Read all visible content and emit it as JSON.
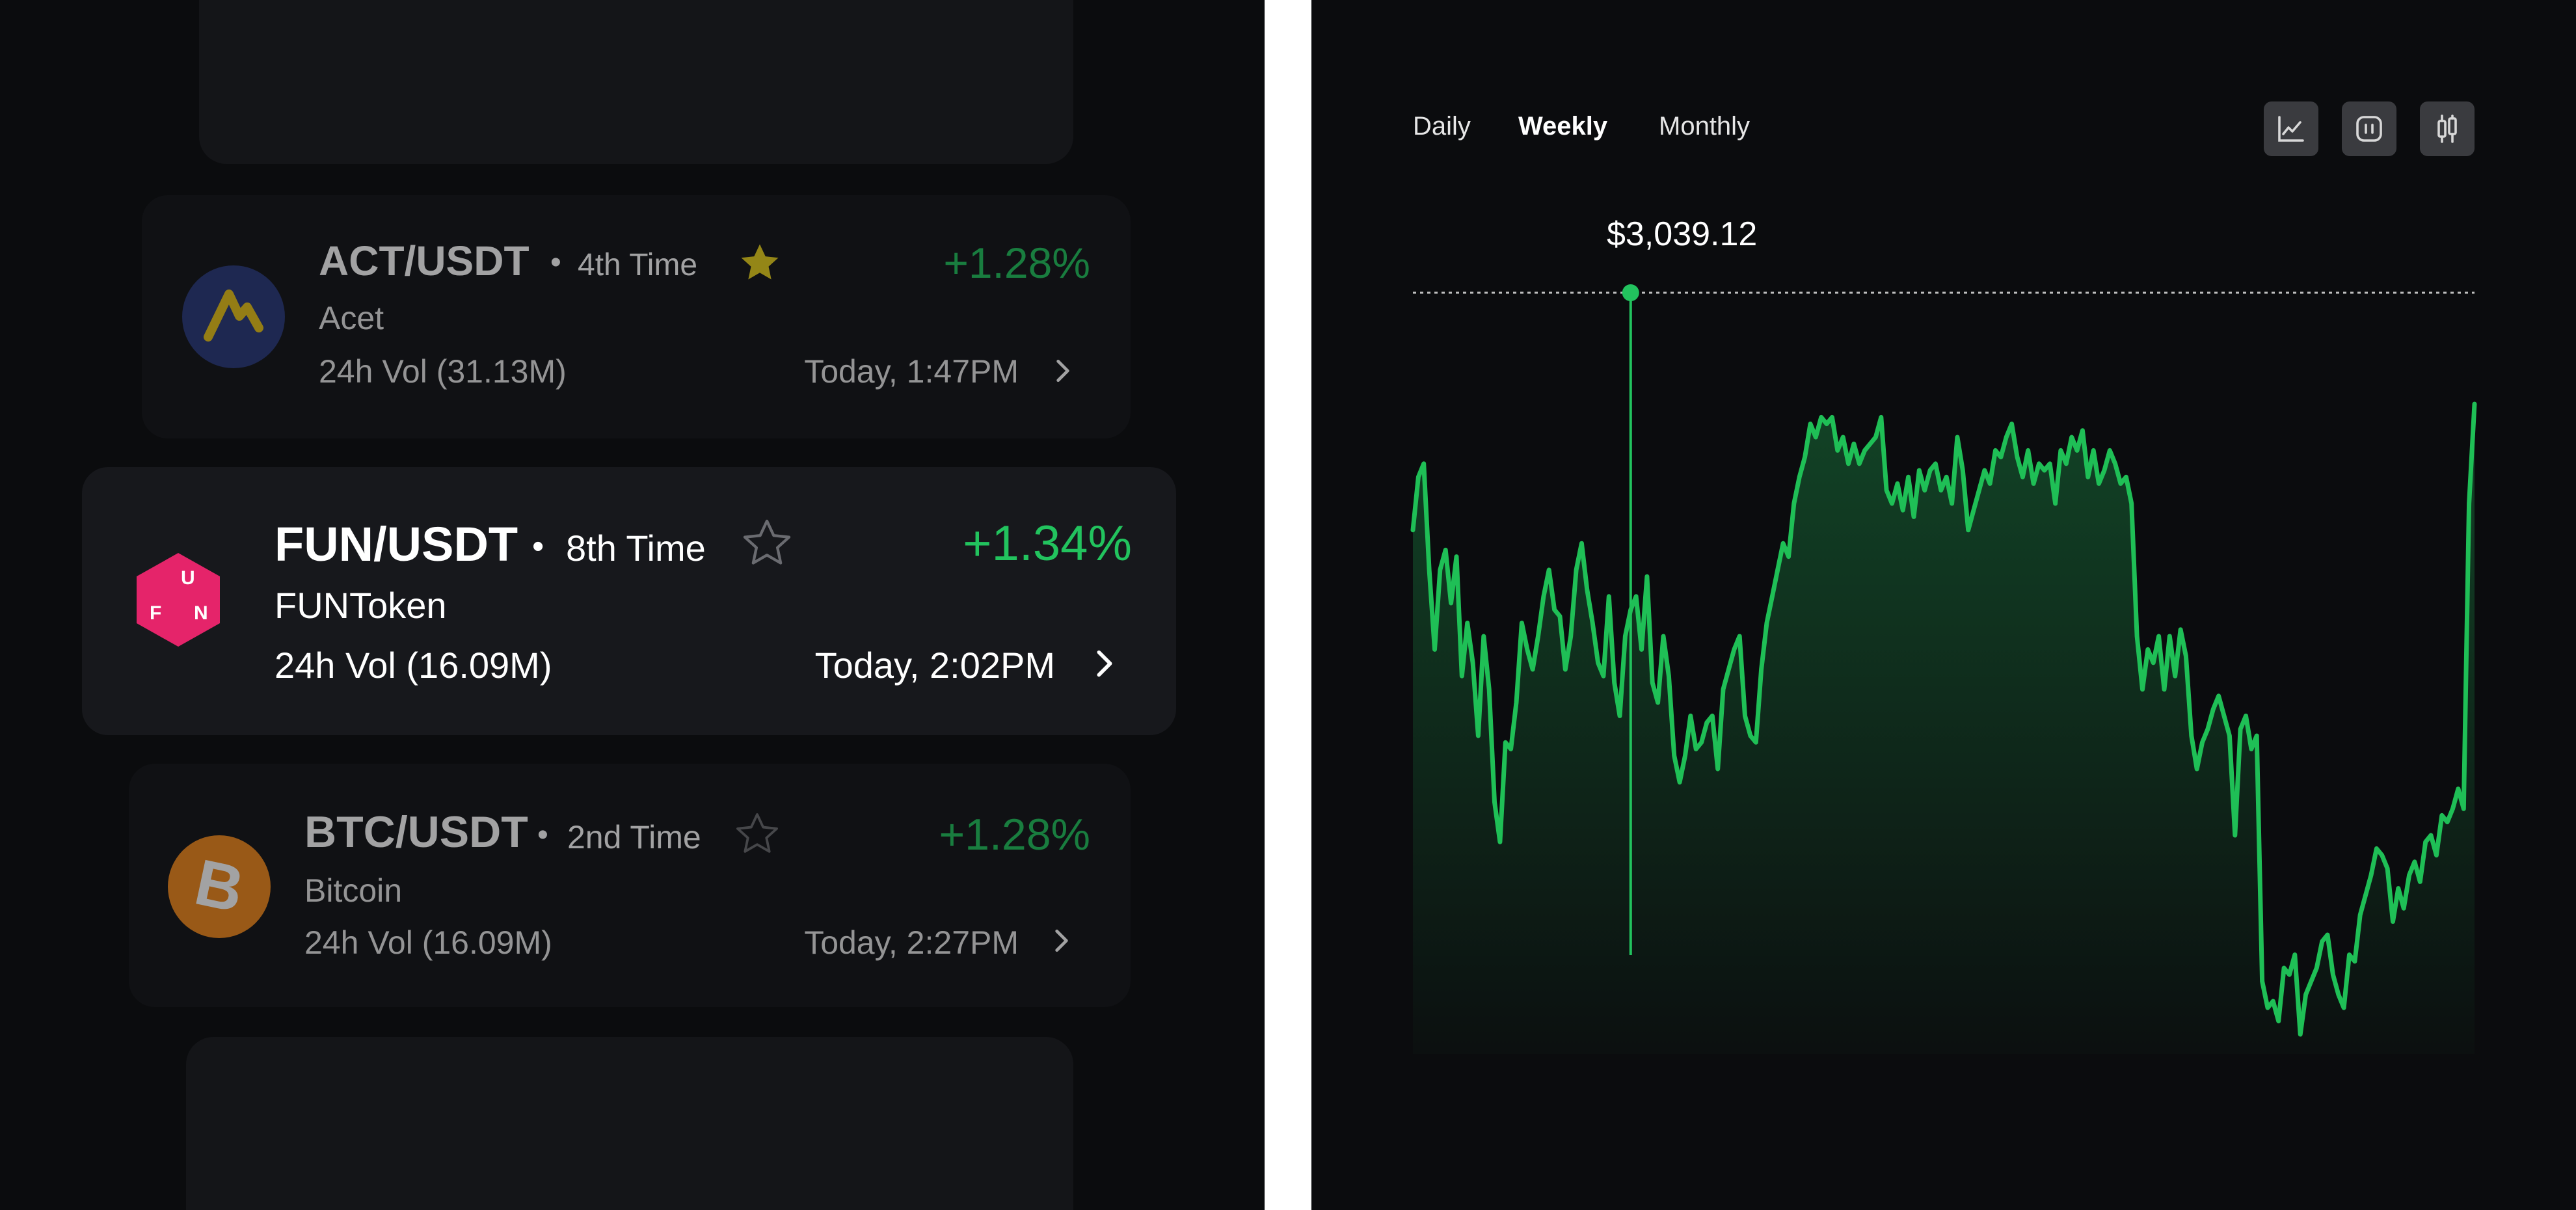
{
  "watchlist": [
    {
      "pair": "ACT/USDT",
      "rank": "4th Time",
      "starred": true,
      "change": "+1.28%",
      "name": "Acet",
      "volume": "24h Vol (31.13M)",
      "time": "Today, 1:47PM",
      "icon": "acet-logo-icon",
      "icon_color": "#2a3a7a"
    },
    {
      "pair": "FUN/USDT",
      "rank": "8th Time",
      "starred": false,
      "change": "+1.34%",
      "name": "FUNToken",
      "volume": "24h Vol (16.09M)",
      "time": "Today, 2:02PM",
      "icon": "funtoken-logo-icon",
      "icon_color": "#e5246a"
    },
    {
      "pair": "BTC/USDT",
      "rank": "2nd Time",
      "starred": false,
      "change": "+1.28%",
      "name": "Bitcoin",
      "volume": "24h Vol (16.09M)",
      "time": "Today, 2:27PM",
      "icon": "bitcoin-logo-icon",
      "icon_color": "#f0891d"
    }
  ],
  "chart_panel": {
    "tabs": [
      "Daily",
      "Weekly",
      "Monthly"
    ],
    "active_tab": "Weekly",
    "chart_type_buttons": [
      "line-chart-icon",
      "bar-chart-icon",
      "candlestick-chart-icon"
    ],
    "hover_price": "$3,039.12"
  },
  "colors": {
    "accent_green": "#22c35e",
    "background": "#0b0c0e",
    "card": "#141518",
    "star_gold": "#c9b21c"
  },
  "chart_data": {
    "type": "area",
    "title": "",
    "xlabel": "",
    "ylabel": "",
    "ylim": [
      0,
      100
    ],
    "grid": false,
    "hover_index": 40,
    "series": [
      {
        "values": [
          76,
          84,
          86,
          70,
          58,
          70,
          73,
          65,
          72,
          54,
          62,
          56,
          45,
          60,
          52,
          35,
          29,
          44,
          43,
          50,
          62,
          58,
          55,
          60,
          66,
          70,
          64,
          63,
          55,
          60,
          70,
          74,
          67,
          62,
          56,
          54,
          66,
          53,
          48,
          60,
          64,
          66,
          58,
          69,
          53,
          50,
          60,
          54,
          42,
          38,
          42,
          48,
          43,
          44,
          47,
          48,
          40,
          52,
          55,
          58,
          60,
          48,
          45,
          44,
          55,
          62,
          66,
          70,
          74,
          72,
          80,
          84,
          87,
          92,
          90,
          93,
          92,
          93,
          88,
          90,
          86,
          89,
          86,
          88,
          89,
          90,
          93,
          82,
          80,
          83,
          79,
          84,
          78,
          85,
          82,
          85,
          86,
          82,
          84,
          80,
          90,
          85,
          76,
          79,
          82,
          85,
          83,
          88,
          87,
          90,
          92,
          87,
          84,
          88,
          83,
          86,
          85,
          86,
          80,
          88,
          86,
          90,
          88,
          91,
          84,
          88,
          83,
          85,
          88,
          86,
          83,
          84,
          80,
          60,
          52,
          58,
          56,
          60,
          52,
          60,
          54,
          61,
          57,
          45,
          40,
          44,
          46,
          49,
          51,
          48,
          45,
          30,
          46,
          48,
          43,
          45,
          8,
          4,
          5,
          2,
          10,
          9,
          12,
          0,
          6,
          8,
          10,
          14,
          15,
          9,
          6,
          4,
          12,
          11,
          18,
          21,
          24,
          28,
          27,
          25,
          17,
          22,
          19,
          24,
          26,
          23,
          29,
          30,
          27,
          33,
          32,
          34,
          37,
          34,
          80,
          95
        ]
      }
    ]
  }
}
